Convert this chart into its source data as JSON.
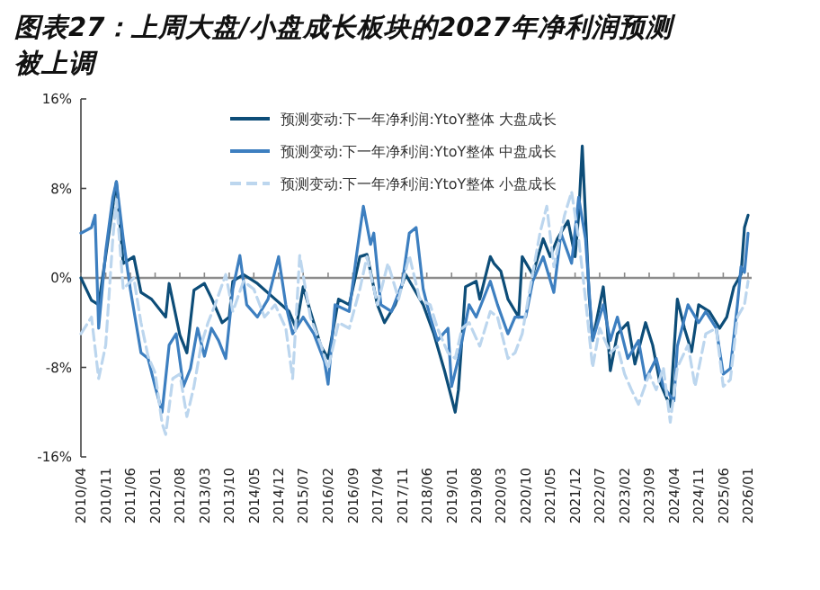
{
  "chart_data": {
    "type": "line",
    "title": "图表27：上周大盘/小盘成长板块的2027年净利润预测被上调",
    "xlim": [
      "2010-04",
      "2026-02"
    ],
    "xticks": [
      {
        "value": "2010-04",
        "label": "2010/04"
      },
      {
        "value": "2010-11",
        "label": "2010/11"
      },
      {
        "value": "2011-06",
        "label": "2011/06"
      },
      {
        "value": "2012-01",
        "label": "2012/01"
      },
      {
        "value": "2012-08",
        "label": "2012/08"
      },
      {
        "value": "2013-03",
        "label": "2013/03"
      },
      {
        "value": "2013-10",
        "label": "2013/10"
      },
      {
        "value": "2014-05",
        "label": "2014/05"
      },
      {
        "value": "2014-12",
        "label": "2014/12"
      },
      {
        "value": "2015-07",
        "label": "2015/07"
      },
      {
        "value": "2016-02",
        "label": "2016/02"
      },
      {
        "value": "2016-09",
        "label": "2016/09"
      },
      {
        "value": "2017-04",
        "label": "2017/04"
      },
      {
        "value": "2017-11",
        "label": "2017/11"
      },
      {
        "value": "2018-06",
        "label": "2018/06"
      },
      {
        "value": "2019-01",
        "label": "2019/01"
      },
      {
        "value": "2019-08",
        "label": "2019/08"
      },
      {
        "value": "2020-03",
        "label": "2020/03"
      },
      {
        "value": "2020-10",
        "label": "2020/10"
      },
      {
        "value": "2021-05",
        "label": "2021/05"
      },
      {
        "value": "2021-12",
        "label": "2021/12"
      },
      {
        "value": "2022-07",
        "label": "2022/07"
      },
      {
        "value": "2023-02",
        "label": "2023/02"
      },
      {
        "value": "2023-09",
        "label": "2023/09"
      },
      {
        "value": "2024-04",
        "label": "2024/04"
      },
      {
        "value": "2024-11",
        "label": "2024/11"
      },
      {
        "value": "2025-06",
        "label": "2025/06"
      },
      {
        "value": "2026-01",
        "label": "2026/01"
      }
    ],
    "ylim": [
      -16,
      16
    ],
    "yticks": [
      {
        "value": -16,
        "label": "-16%"
      },
      {
        "value": -8,
        "label": "-8%"
      },
      {
        "value": 0,
        "label": "0%"
      },
      {
        "value": 8,
        "label": "8%"
      },
      {
        "value": 16,
        "label": "16%"
      }
    ],
    "ref_lines": [
      {
        "axis": "y",
        "value": 0,
        "color": "#8c8c8c"
      }
    ],
    "legend": "top",
    "grid": false,
    "series": [
      {
        "name": "预测变动:下一年净利润:YtoY整体 大盘成长",
        "color": "#0d4d78",
        "line_style": "solid",
        "x": [
          "2010-04",
          "2010-07",
          "2010-09",
          "2011-02",
          "2011-04",
          "2011-07",
          "2011-09",
          "2011-12",
          "2012-04",
          "2012-05",
          "2012-08",
          "2012-10",
          "2012-12",
          "2013-03",
          "2013-05",
          "2013-08",
          "2013-10",
          "2013-11",
          "2014-02",
          "2014-06",
          "2014-11",
          "2015-03",
          "2015-05",
          "2015-07",
          "2015-09",
          "2015-12",
          "2016-02",
          "2016-05",
          "2016-08",
          "2016-11",
          "2017-01",
          "2017-04",
          "2017-06",
          "2017-09",
          "2017-12",
          "2018-02",
          "2018-05",
          "2018-08",
          "2018-11",
          "2019-02",
          "2019-03",
          "2019-05",
          "2019-08",
          "2019-09",
          "2019-12",
          "2020-01",
          "2020-03",
          "2020-05",
          "2020-08",
          "2020-09",
          "2020-12",
          "2021-03",
          "2021-05",
          "2021-07",
          "2021-10",
          "2021-12",
          "2022-01",
          "2022-02",
          "2022-04",
          "2022-05",
          "2022-08",
          "2022-09",
          "2022-10",
          "2022-12",
          "2023-03",
          "2023-05",
          "2023-08",
          "2023-10",
          "2023-12",
          "2024-03",
          "2024-05",
          "2024-07",
          "2024-09",
          "2024-11",
          "2025-02",
          "2025-05",
          "2025-07",
          "2025-09",
          "2025-11",
          "2025-12",
          "2026-01"
        ],
        "values": [
          0,
          -2,
          -2.4,
          8.6,
          1.3,
          1.9,
          -1.3,
          -1.9,
          -3.5,
          -0.5,
          -5.1,
          -6.7,
          -1.1,
          -0.5,
          -1.8,
          -4,
          -3.5,
          -0.3,
          0.3,
          -0.5,
          -1.9,
          -3,
          -4.5,
          -0.8,
          -3,
          -6.1,
          -7.2,
          -1.9,
          -2.4,
          1.9,
          2.1,
          -2.4,
          -4,
          -2.4,
          0.3,
          -0.8,
          -2.4,
          -5,
          -8.3,
          -12,
          -10,
          -0.8,
          -0.3,
          -1.9,
          1.9,
          1.3,
          0.6,
          -1.9,
          -3.5,
          1.9,
          0.3,
          3.5,
          1.9,
          3.5,
          5.1,
          1.9,
          5.6,
          11.8,
          -1.6,
          -5.6,
          -0.8,
          -4,
          -8.3,
          -5,
          -4,
          -7.7,
          -4,
          -6,
          -9.3,
          -11.5,
          -1.9,
          -4.5,
          -6.6,
          -2.4,
          -3,
          -4.5,
          -3.5,
          -0.8,
          0.3,
          4.5,
          5.6
        ]
      },
      {
        "name": "预测变动:下一年净利润:YtoY整体 中盘成长",
        "color": "#3d7fc0",
        "line_style": "solid",
        "x": [
          "2010-04",
          "2010-07",
          "2010-08",
          "2010-09",
          "2010-11",
          "2011-01",
          "2011-02",
          "2011-04",
          "2011-06",
          "2011-09",
          "2011-11",
          "2012-01",
          "2012-03",
          "2012-05",
          "2012-07",
          "2012-09",
          "2012-11",
          "2013-01",
          "2013-03",
          "2013-05",
          "2013-07",
          "2013-09",
          "2013-11",
          "2014-01",
          "2014-03",
          "2014-06",
          "2014-09",
          "2014-12",
          "2015-02",
          "2015-04",
          "2015-07",
          "2015-10",
          "2016-01",
          "2016-02",
          "2016-04",
          "2016-08",
          "2016-10",
          "2016-12",
          "2017-02",
          "2017-03",
          "2017-05",
          "2017-08",
          "2017-11",
          "2018-01",
          "2018-03",
          "2018-05",
          "2018-07",
          "2018-09",
          "2018-12",
          "2019-01",
          "2019-03",
          "2019-06",
          "2019-08",
          "2019-12",
          "2020-02",
          "2020-05",
          "2020-07",
          "2020-10",
          "2020-12",
          "2021-03",
          "2021-06",
          "2021-08",
          "2021-11",
          "2022-01",
          "2022-03",
          "2022-05",
          "2022-08",
          "2022-10",
          "2022-12",
          "2023-03",
          "2023-06",
          "2023-08",
          "2023-11",
          "2024-01",
          "2024-04",
          "2024-05",
          "2024-08",
          "2024-11",
          "2025-01",
          "2025-04",
          "2025-06",
          "2025-08",
          "2025-10",
          "2025-11",
          "2025-12",
          "2026-01"
        ],
        "values": [
          4,
          4.5,
          5.6,
          -4.5,
          2.4,
          7.2,
          8.6,
          3.5,
          -1,
          -6.7,
          -7.2,
          -9.7,
          -12,
          -6,
          -5,
          -9.7,
          -8.1,
          -4.5,
          -7,
          -4.5,
          -5.6,
          -7.2,
          -1,
          2,
          -2.4,
          -3.5,
          -1.9,
          1.9,
          -2.4,
          -5,
          -3.5,
          -5,
          -7.5,
          -9.5,
          -2.4,
          -3,
          1.9,
          6.4,
          3,
          4,
          -2.4,
          -3,
          -0.5,
          4,
          4.5,
          -1,
          -3.5,
          -5.6,
          -4.5,
          -9.7,
          -7.2,
          -2.4,
          -3.5,
          -0.3,
          -2.4,
          -5,
          -3.5,
          -3.5,
          -0.3,
          1.9,
          -1.3,
          4,
          1.3,
          7.2,
          3.5,
          -5.6,
          -2.4,
          -5.6,
          -3.5,
          -7.2,
          -5.6,
          -9.1,
          -7.2,
          -9.7,
          -11,
          -6.1,
          -2.4,
          -4,
          -3,
          -4.5,
          -8.6,
          -8.1,
          -2.4,
          1,
          0.5,
          4
        ]
      },
      {
        "name": "预测变动:下一年净利润:YtoY整体 小盘成长",
        "color": "#bcd6ee",
        "line_style": "dashed",
        "x": [
          "2010-04",
          "2010-07",
          "2010-09",
          "2010-11",
          "2011-01",
          "2011-02",
          "2011-04",
          "2011-07",
          "2011-09",
          "2011-11",
          "2012-01",
          "2012-03",
          "2012-04",
          "2012-06",
          "2012-08",
          "2012-10",
          "2012-12",
          "2013-02",
          "2013-04",
          "2013-06",
          "2013-09",
          "2013-11",
          "2014-02",
          "2014-05",
          "2014-08",
          "2014-11",
          "2015-02",
          "2015-04",
          "2015-06",
          "2015-09",
          "2015-12",
          "2016-02",
          "2016-05",
          "2016-08",
          "2016-11",
          "2017-01",
          "2017-04",
          "2017-07",
          "2017-10",
          "2018-01",
          "2018-04",
          "2018-07",
          "2018-09",
          "2018-12",
          "2019-02",
          "2019-04",
          "2019-06",
          "2019-09",
          "2019-12",
          "2020-02",
          "2020-05",
          "2020-07",
          "2020-09",
          "2020-11",
          "2021-02",
          "2021-04",
          "2021-06",
          "2021-09",
          "2021-11",
          "2022-01",
          "2022-03",
          "2022-05",
          "2022-07",
          "2022-10",
          "2022-12",
          "2023-02",
          "2023-04",
          "2023-06",
          "2023-09",
          "2023-11",
          "2024-01",
          "2024-03",
          "2024-05",
          "2024-08",
          "2024-10",
          "2025-01",
          "2025-04",
          "2025-06",
          "2025-08",
          "2025-10",
          "2025-12",
          "2026-01"
        ],
        "values": [
          -5,
          -3.5,
          -9,
          -6,
          3.5,
          7,
          -1,
          0,
          -4,
          -7,
          -8.5,
          -13,
          -14,
          -9,
          -8.6,
          -12.4,
          -9.7,
          -6,
          -4,
          -2.4,
          0.3,
          -3,
          -0.3,
          -1,
          -3.5,
          -2.4,
          -4.5,
          -9,
          2,
          -3.5,
          -6,
          -8.1,
          -4,
          -4.5,
          -1,
          1.9,
          -2.4,
          1.3,
          -1.9,
          2,
          -1.9,
          -2.4,
          -4.5,
          -6.7,
          -7.2,
          -4.5,
          -4,
          -6.1,
          -3,
          -3.5,
          -7.2,
          -6.7,
          -5,
          -1.3,
          4,
          6.4,
          1,
          5.6,
          7.7,
          3.5,
          -1.9,
          -8,
          -4.5,
          -6.7,
          -6.1,
          -8.6,
          -10,
          -11.3,
          -8.6,
          -10,
          -8,
          -12.9,
          -8,
          -6,
          -9.7,
          -5,
          -4.5,
          -9.7,
          -9.1,
          -3.5,
          -2.4,
          -0.3
        ]
      }
    ]
  }
}
